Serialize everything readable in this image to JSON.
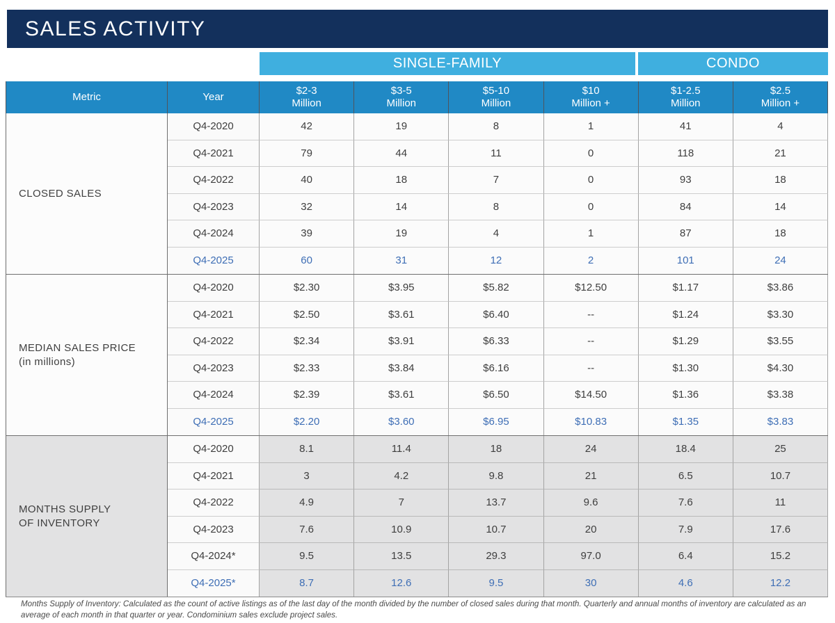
{
  "title": "SALES ACTIVITY",
  "group_headers": {
    "single_family": "SINGLE-FAMILY",
    "condo": "CONDO"
  },
  "columns": {
    "metric": "Metric",
    "year": "Year",
    "bands": [
      {
        "l1": "$2-3",
        "l2": "Million"
      },
      {
        "l1": "$3-5",
        "l2": "Million"
      },
      {
        "l1": "$5-10",
        "l2": "Million"
      },
      {
        "l1": "$10",
        "l2": "Million +"
      },
      {
        "l1": "$1-2.5",
        "l2": "Million"
      },
      {
        "l1": "$2.5",
        "l2": "Million +"
      }
    ]
  },
  "sections": [
    {
      "metric": "CLOSED SALES",
      "metric_line2": "",
      "gray": false,
      "rows": [
        {
          "year": "Q4-2020",
          "highlight": false,
          "values": [
            "42",
            "19",
            "8",
            "1",
            "41",
            "4"
          ]
        },
        {
          "year": "Q4-2021",
          "highlight": false,
          "values": [
            "79",
            "44",
            "11",
            "0",
            "118",
            "21"
          ]
        },
        {
          "year": "Q4-2022",
          "highlight": false,
          "values": [
            "40",
            "18",
            "7",
            "0",
            "93",
            "18"
          ]
        },
        {
          "year": "Q4-2023",
          "highlight": false,
          "values": [
            "32",
            "14",
            "8",
            "0",
            "84",
            "14"
          ]
        },
        {
          "year": "Q4-2024",
          "highlight": false,
          "values": [
            "39",
            "19",
            "4",
            "1",
            "87",
            "18"
          ]
        },
        {
          "year": "Q4-2025",
          "highlight": true,
          "values": [
            "60",
            "31",
            "12",
            "2",
            "101",
            "24"
          ]
        }
      ]
    },
    {
      "metric": "MEDIAN SALES PRICE",
      "metric_line2": "(in millions)",
      "gray": false,
      "rows": [
        {
          "year": "Q4-2020",
          "highlight": false,
          "values": [
            "$2.30",
            "$3.95",
            "$5.82",
            "$12.50",
            "$1.17",
            "$3.86"
          ]
        },
        {
          "year": "Q4-2021",
          "highlight": false,
          "values": [
            "$2.50",
            "$3.61",
            "$6.40",
            "--",
            "$1.24",
            "$3.30"
          ]
        },
        {
          "year": "Q4-2022",
          "highlight": false,
          "values": [
            "$2.34",
            "$3.91",
            "$6.33",
            "--",
            "$1.29",
            "$3.55"
          ]
        },
        {
          "year": "Q4-2023",
          "highlight": false,
          "values": [
            "$2.33",
            "$3.84",
            "$6.16",
            "--",
            "$1.30",
            "$4.30"
          ]
        },
        {
          "year": "Q4-2024",
          "highlight": false,
          "values": [
            "$2.39",
            "$3.61",
            "$6.50",
            "$14.50",
            "$1.36",
            "$3.38"
          ]
        },
        {
          "year": "Q4-2025",
          "highlight": true,
          "values": [
            "$2.20",
            "$3.60",
            "$6.95",
            "$10.83",
            "$1.35",
            "$3.83"
          ]
        }
      ]
    },
    {
      "metric": "MONTHS SUPPLY",
      "metric_line2": "OF  INVENTORY",
      "gray": true,
      "rows": [
        {
          "year": "Q4-2020",
          "highlight": false,
          "values": [
            "8.1",
            "11.4",
            "18",
            "24",
            "18.4",
            "25"
          ]
        },
        {
          "year": "Q4-2021",
          "highlight": false,
          "values": [
            "3",
            "4.2",
            "9.8",
            "21",
            "6.5",
            "10.7"
          ]
        },
        {
          "year": "Q4-2022",
          "highlight": false,
          "values": [
            "4.9",
            "7",
            "13.7",
            "9.6",
            "7.6",
            "11"
          ]
        },
        {
          "year": "Q4-2023",
          "highlight": false,
          "values": [
            "7.6",
            "10.9",
            "10.7",
            "20",
            "7.9",
            "17.6"
          ]
        },
        {
          "year": "Q4-2024*",
          "highlight": false,
          "values": [
            "9.5",
            "13.5",
            "29.3",
            "97.0",
            "6.4",
            "15.2"
          ]
        },
        {
          "year": "Q4-2025*",
          "highlight": true,
          "values": [
            "8.7",
            "12.6",
            "9.5",
            "30",
            "4.6",
            "12.2"
          ]
        }
      ]
    }
  ],
  "footnote": "Months Supply of Inventory: Calculated as the count of active listings as of the last day of the month divided by the number of closed sales during that month. Quarterly and annual months of inventory are calculated as an average of each month in that quarter or year. Condominium sales exclude project sales.",
  "colors": {
    "navy_banner": "#13305c",
    "band_blue": "#3fafdf",
    "header_blue": "#2089c5",
    "highlight_text_blue": "#3e6eb5",
    "gray_section_bg": "#e2e2e3"
  }
}
